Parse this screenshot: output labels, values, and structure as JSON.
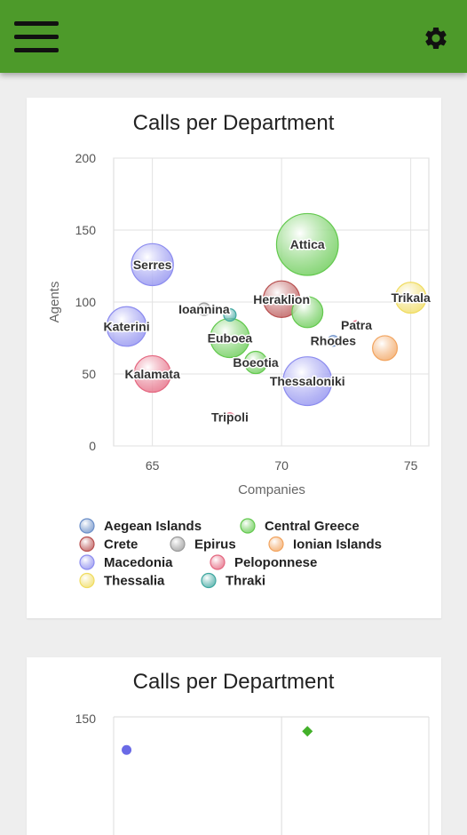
{
  "app": {
    "menu_icon": "hamburger-menu-icon",
    "settings_icon": "gear-icon",
    "bar_color": "#4d9a2a"
  },
  "charts": [
    {
      "title": "Calls per Department",
      "xlabel": "Companies",
      "ylabel": "Agents"
    },
    {
      "title": "Calls per Department",
      "ytick_top": "150"
    }
  ],
  "chart_data": [
    {
      "type": "scatter",
      "title": "Calls per Department",
      "xlabel": "Companies",
      "ylabel": "Agents",
      "xlim": [
        63.5,
        75.7
      ],
      "ylim": [
        0,
        200
      ],
      "xticks": [
        65,
        70,
        75
      ],
      "yticks": [
        0,
        50,
        100,
        150,
        200
      ],
      "grid": true,
      "legend": "bottom",
      "series": [
        {
          "name": "Aegean Islands",
          "color": "#6b8fc8",
          "points": [
            {
              "label": "Rhodes",
              "x": 72.0,
              "y": 73,
              "size": 0.3
            }
          ]
        },
        {
          "name": "Central Greece",
          "color": "#63c94e",
          "points": [
            {
              "label": "Attica",
              "x": 71.0,
              "y": 140,
              "size": 10
            },
            {
              "label": "Euboea",
              "x": 68.0,
              "y": 75,
              "size": 4
            },
            {
              "label": "Boeotia",
              "x": 69.0,
              "y": 58,
              "size": 1.3
            },
            {
              "label": "",
              "x": 71.0,
              "y": 93,
              "size": 2.5
            }
          ]
        },
        {
          "name": "Crete",
          "color": "#b85050",
          "points": [
            {
              "label": "Heraklion",
              "x": 70.0,
              "y": 102,
              "size": 3.5
            }
          ]
        },
        {
          "name": "Epirus",
          "color": "#9a9a9a",
          "points": [
            {
              "label": "Ioannina",
              "x": 67.0,
              "y": 95,
              "size": 0.4
            }
          ]
        },
        {
          "name": "Ionian Islands",
          "color": "#f2a45f",
          "points": [
            {
              "label": "",
              "x": 74.0,
              "y": 68,
              "size": 1.6
            }
          ]
        },
        {
          "name": "Macedonia",
          "color": "#8c8cef",
          "points": [
            {
              "label": "Serres",
              "x": 65.0,
              "y": 126,
              "size": 4.6
            },
            {
              "label": "Katerini",
              "x": 64.0,
              "y": 83,
              "size": 4.1
            },
            {
              "label": "Thessaloniki",
              "x": 71.0,
              "y": 45,
              "size": 6.2
            }
          ]
        },
        {
          "name": "Peloponnese",
          "color": "#e4667f",
          "points": [
            {
              "label": "Kalamata",
              "x": 65.0,
              "y": 50,
              "size": 3.5
            },
            {
              "label": "Patra",
              "x": 72.9,
              "y": 84,
              "size": 0.2
            },
            {
              "label": "Tripoli",
              "x": 68.0,
              "y": 20,
              "size": 0.2
            }
          ]
        },
        {
          "name": "Thessalia",
          "color": "#f0dc60",
          "points": [
            {
              "label": "Trikala",
              "x": 75.0,
              "y": 103,
              "size": 2.5
            }
          ]
        },
        {
          "name": "Thraki",
          "color": "#3fa7a0",
          "points": [
            {
              "label": "",
              "x": 68.0,
              "y": 91,
              "size": 0.4
            }
          ]
        }
      ]
    },
    {
      "type": "scatter",
      "title": "Calls per Department",
      "ylim_top": 150,
      "grid": true,
      "series": [
        {
          "name": "",
          "color": "#6a6ae6",
          "marker": "circle",
          "points": [
            {
              "x": 64.0,
              "y": 127
            }
          ]
        },
        {
          "name": "",
          "color": "#43b02a",
          "marker": "diamond",
          "points": [
            {
              "x": 71.0,
              "y": 140
            }
          ]
        }
      ]
    }
  ]
}
